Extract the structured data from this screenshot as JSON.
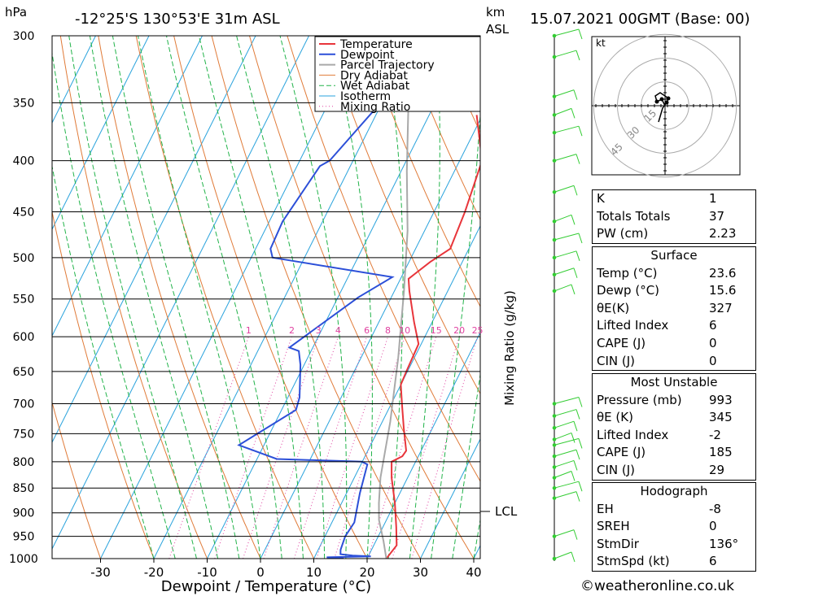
{
  "header": {
    "pressure_unit": "hPa",
    "location": "-12°25'S  130°53'E  31m  ASL",
    "height_unit_top": "km",
    "height_unit_bottom": "ASL",
    "datetime": "15.07.2021  00GMT  (Base: 00)"
  },
  "chart_data": {
    "type": "line",
    "subtype": "skew-t log-p",
    "xlabel": "Dewpoint / Temperature (°C)",
    "ylabel_right": "Mixing Ratio (g/kg)",
    "pressure_levels": [
      300,
      350,
      400,
      450,
      500,
      550,
      600,
      650,
      700,
      750,
      800,
      850,
      900,
      950,
      1000
    ],
    "temperature_ticks": [
      -30,
      -20,
      -10,
      0,
      10,
      20,
      30,
      40
    ],
    "mixing_ratio_labels": [
      "1",
      "2",
      "3",
      "4",
      "6",
      "8",
      "10",
      "15",
      "20",
      "25"
    ],
    "mixing_ratio_values": [
      1,
      2,
      3,
      4,
      6,
      8,
      10,
      15,
      20,
      25
    ],
    "lcl_label": "LCL",
    "lcl_pressure": 900,
    "legend": [
      "Temperature",
      "Dewpoint",
      "Parcel Trajectory",
      "Dry Adiabat",
      "Wet Adiabat",
      "Isotherm",
      "Mixing Ratio"
    ],
    "colors": {
      "temperature": "#e8353b",
      "dewpoint": "#2c4fd8",
      "parcel": "#a9a9a9",
      "dry_adiabat": "#e07b39",
      "wet_adiabat": "#22b34a",
      "isotherm": "#2aa3dd",
      "mixing_ratio": "#e040a0",
      "wind": "#33cc33"
    },
    "series": [
      {
        "name": "Temperature",
        "points": [
          [
            23.6,
            1000
          ],
          [
            24.3,
            970
          ],
          [
            22.5,
            930
          ],
          [
            20,
            880
          ],
          [
            17,
            830
          ],
          [
            15.5,
            800
          ],
          [
            17,
            790
          ],
          [
            17.2,
            780
          ],
          [
            14.6,
            740
          ],
          [
            12,
            700
          ],
          [
            10,
            670
          ],
          [
            9.8,
            650
          ],
          [
            9.5,
            610
          ],
          [
            6.6,
            580
          ],
          [
            2.8,
            540
          ],
          [
            1.5,
            525
          ],
          [
            4.0,
            505
          ],
          [
            6.5,
            490
          ],
          [
            5.8,
            450
          ],
          [
            4.2,
            400
          ],
          [
            -1.1,
            360
          ]
        ]
      },
      {
        "name": "Dewpoint",
        "points": [
          [
            15.6,
            1000
          ],
          [
            12.3,
            997
          ],
          [
            20.5,
            995
          ],
          [
            17,
            993
          ],
          [
            14.6,
            990
          ],
          [
            14.2,
            980
          ],
          [
            13.8,
            950
          ],
          [
            14.2,
            920
          ],
          [
            12.5,
            860
          ],
          [
            11.2,
            805
          ],
          [
            9.9,
            800
          ],
          [
            -6.3,
            795
          ],
          [
            -14.7,
            770
          ],
          [
            -7.3,
            710
          ],
          [
            -7.8,
            690
          ],
          [
            -10.7,
            640
          ],
          [
            -12.3,
            620
          ],
          [
            -14.4,
            615
          ],
          [
            -6.2,
            548
          ],
          [
            -1.7,
            523
          ],
          [
            -26,
            500
          ],
          [
            -27.2,
            490
          ],
          [
            -27.5,
            460
          ],
          [
            -25.7,
            405
          ],
          [
            -24.4,
            400
          ],
          [
            -19.8,
            345
          ],
          [
            -19,
            305
          ]
        ]
      },
      {
        "name": "Parcel Trajectory",
        "points": [
          [
            23.6,
            1000
          ],
          [
            21.4,
            960
          ],
          [
            18.6,
            915
          ],
          [
            17,
            880
          ],
          [
            14.9,
            830
          ],
          [
            11.5,
            730
          ],
          [
            7,
            630
          ],
          [
            1.8,
            540
          ],
          [
            -3.2,
            470
          ],
          [
            -8.9,
            410
          ],
          [
            -14.5,
            355
          ],
          [
            -20.7,
            305
          ]
        ]
      }
    ],
    "wind_barbs_note": "wind barbs along vertical line at right",
    "hodograph": {
      "unit": "kt",
      "rings": [
        15,
        30,
        45
      ],
      "ring_labels": [
        "15",
        "30",
        "45"
      ]
    }
  },
  "indices": {
    "rows": [
      {
        "label": "K",
        "value": "1"
      },
      {
        "label": "Totals Totals",
        "value": "37"
      },
      {
        "label": "PW (cm)",
        "value": "2.23"
      }
    ]
  },
  "surface": {
    "title": "Surface",
    "rows": [
      {
        "label": "Temp (°C)",
        "value": "23.6"
      },
      {
        "label": "Dewp (°C)",
        "value": "15.6"
      },
      {
        "label": "θE(K)",
        "value": "327"
      },
      {
        "label": "Lifted Index",
        "value": "6"
      },
      {
        "label": "CAPE (J)",
        "value": "0"
      },
      {
        "label": "CIN (J)",
        "value": "0"
      }
    ]
  },
  "most_unstable": {
    "title": "Most Unstable",
    "rows": [
      {
        "label": "Pressure (mb)",
        "value": "993"
      },
      {
        "label": "θE (K)",
        "value": "345"
      },
      {
        "label": "Lifted Index",
        "value": "-2"
      },
      {
        "label": "CAPE (J)",
        "value": "185"
      },
      {
        "label": "CIN (J)",
        "value": "29"
      }
    ]
  },
  "hodograph_table": {
    "title": "Hodograph",
    "rows": [
      {
        "label": "EH",
        "value": "-8"
      },
      {
        "label": "SREH",
        "value": "0"
      },
      {
        "label": "StmDir",
        "value": "136°"
      },
      {
        "label": "StmSpd (kt)",
        "value": "6"
      }
    ]
  },
  "footer": {
    "copyright_symbol": "©",
    "site": "weatheronline.co.uk"
  }
}
